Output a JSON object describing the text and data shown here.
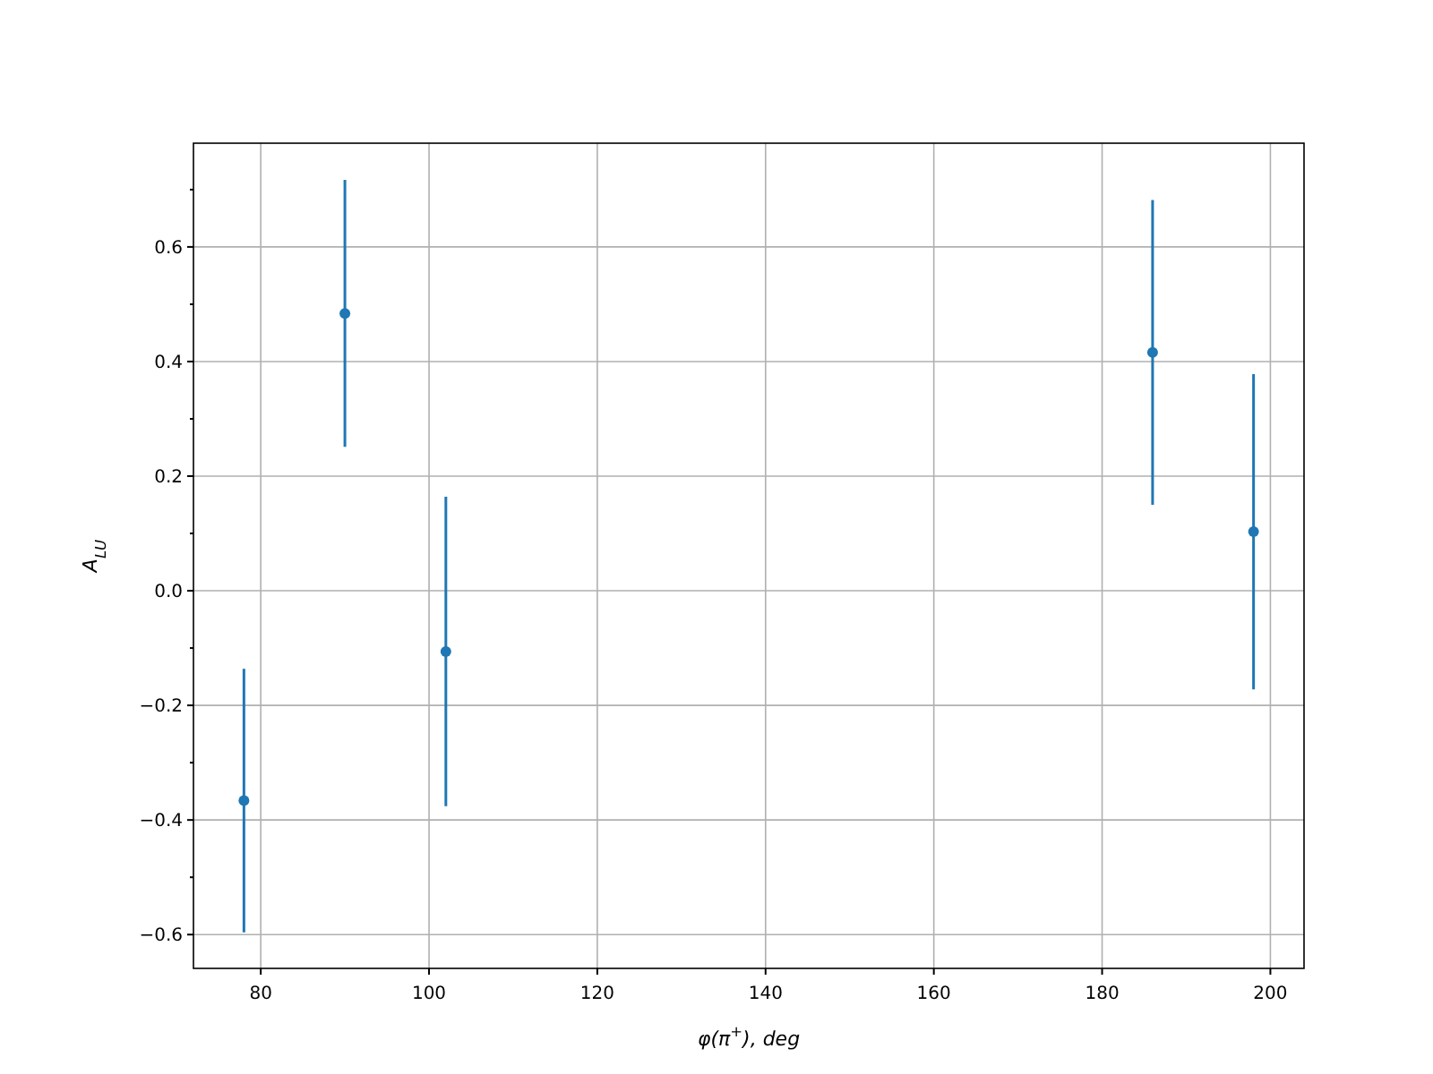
{
  "chart_data": {
    "type": "scatter",
    "xlabel": "φ(π$^{+}$), deg",
    "ylabel": "A$_{LU}$",
    "x": [
      78,
      90,
      102,
      186,
      198
    ],
    "series": [
      {
        "color": "#1f77b4",
        "values": [
          -0.366,
          0.484,
          -0.106,
          0.416,
          0.103
        ],
        "errors": [
          0.23,
          0.233,
          0.27,
          0.266,
          0.275
        ]
      }
    ],
    "xlim": [
      72,
      204
    ],
    "xticks": [
      80,
      100,
      120,
      140,
      160,
      180,
      200
    ],
    "ylim": [
      -0.659,
      0.781
    ],
    "yticks": [
      {
        "value": -0.6,
        "label": "−0.6"
      },
      {
        "value": -0.5,
        "label": null
      },
      {
        "value": -0.4,
        "label": "−0.4"
      },
      {
        "value": -0.3,
        "label": null
      },
      {
        "value": -0.2,
        "label": "−0.2"
      },
      {
        "value": -0.1,
        "label": null
      },
      {
        "value": 0,
        "label": "0.0"
      },
      {
        "value": 0.1,
        "label": null
      },
      {
        "value": 0.2,
        "label": "0.2"
      },
      {
        "value": 0.3,
        "label": null
      },
      {
        "value": 0.4,
        "label": "0.4"
      },
      {
        "value": 0.5,
        "label": null
      },
      {
        "value": 0.6,
        "label": "0.6"
      },
      {
        "value": 0.7,
        "label": null
      }
    ],
    "grid": true,
    "marker": "circle"
  }
}
